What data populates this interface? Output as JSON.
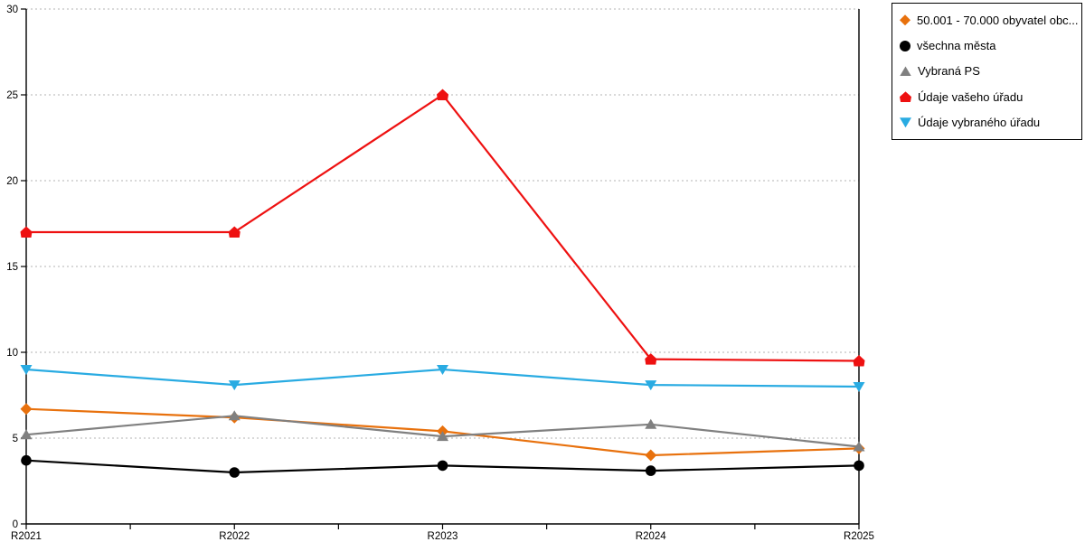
{
  "chart_data": {
    "type": "line",
    "title": "",
    "xlabel": "",
    "ylabel": "",
    "categories": [
      "R2021",
      "R2022",
      "R2023",
      "R2024",
      "R2025"
    ],
    "series": [
      {
        "name": "50.001 - 70.000 obyvatel obc...",
        "color": "#E8710D",
        "marker": "diamond",
        "values": [
          6.7,
          6.2,
          5.4,
          4.0,
          4.4
        ]
      },
      {
        "name": "všechna města",
        "color": "#000000",
        "marker": "circle",
        "values": [
          3.7,
          3.0,
          3.4,
          3.1,
          3.4
        ]
      },
      {
        "name": "Vybraná PS",
        "color": "#808080",
        "marker": "triangle-up",
        "values": [
          5.2,
          6.3,
          5.1,
          5.8,
          4.5
        ]
      },
      {
        "name": "Údaje vašeho úřadu",
        "color": "#EE1111",
        "marker": "pentagon",
        "values": [
          17.0,
          17.0,
          25.0,
          9.6,
          9.5
        ]
      },
      {
        "name": "Údaje vybraného úřadu",
        "color": "#29ABE2",
        "marker": "triangle-down",
        "values": [
          9.0,
          8.1,
          9.0,
          8.1,
          8.0
        ]
      }
    ],
    "ylim": [
      0,
      30
    ],
    "yticks": [
      0,
      5,
      10,
      15,
      20,
      25,
      30
    ],
    "grid": "horizontal-dashed",
    "legend_position": "top-right"
  },
  "colors": {
    "background": "#ffffff",
    "axis": "#000000",
    "grid": "#B3B3B3",
    "legend_border": "#000000",
    "tick_text": "#000000"
  }
}
